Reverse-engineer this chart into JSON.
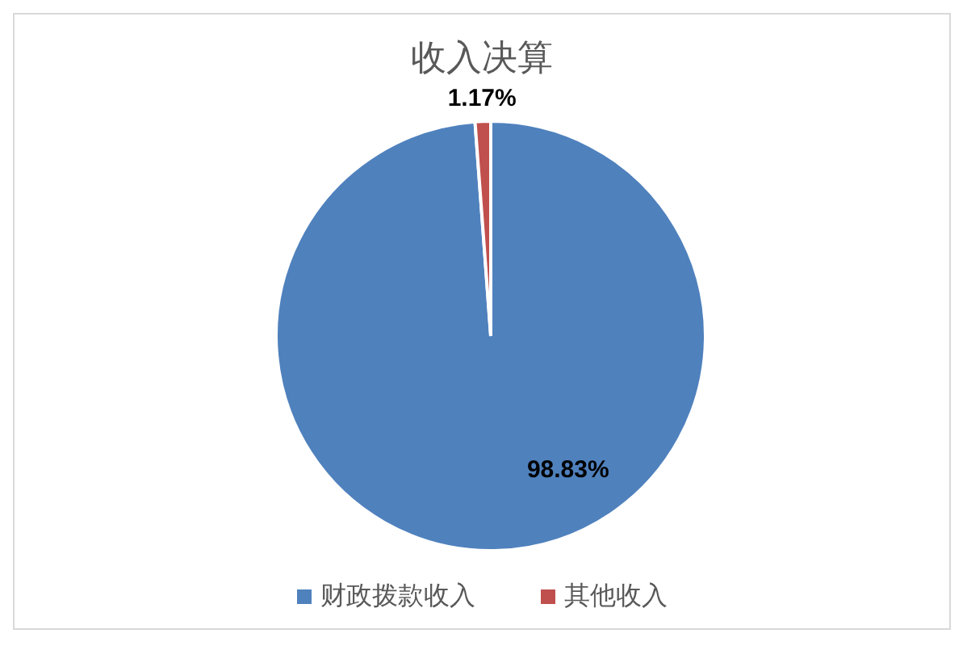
{
  "chart_data": {
    "type": "pie",
    "title": "收入决算",
    "categories": [
      "财政拨款收入",
      "其他收入"
    ],
    "values": [
      98.83,
      1.17
    ],
    "colors": [
      "#4f81bd",
      "#c0504d"
    ],
    "value_labels": [
      "98.83%",
      "1.17%"
    ],
    "legend": "bottom"
  }
}
